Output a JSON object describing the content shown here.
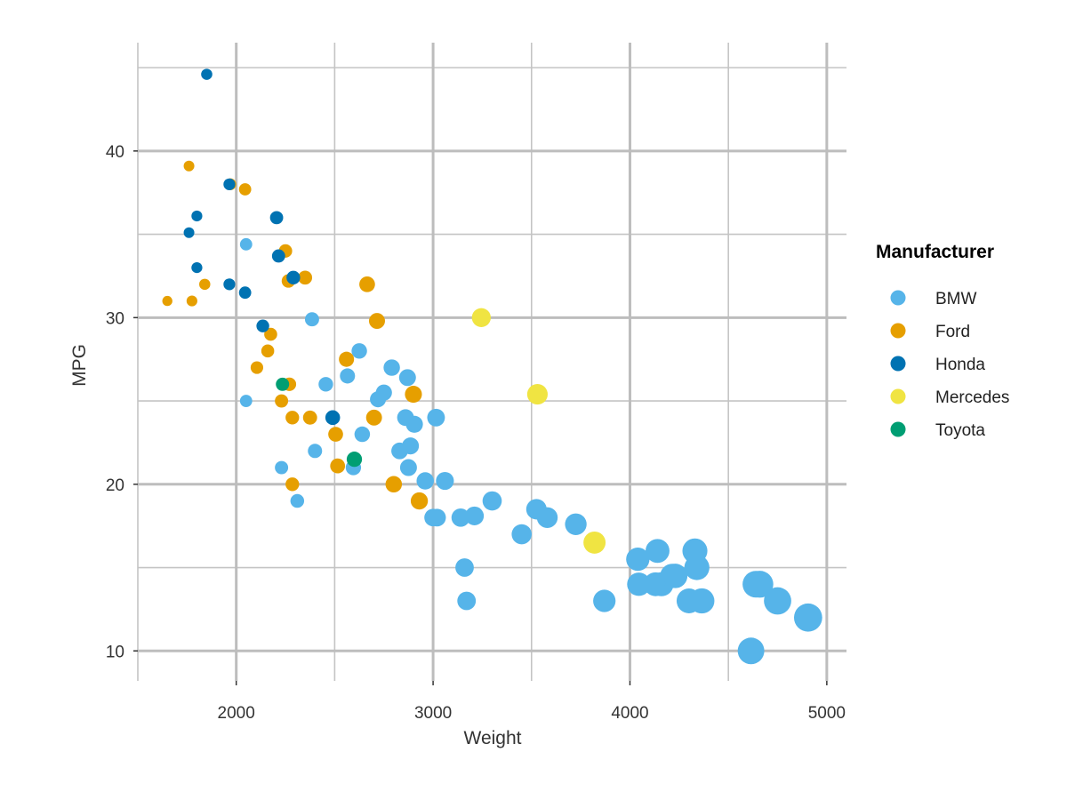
{
  "chart_data": {
    "type": "scatter",
    "title": "",
    "xlabel": "Weight",
    "ylabel": "MPG",
    "xlim": [
      1500,
      5100
    ],
    "ylim": [
      8.2,
      46.5
    ],
    "x_ticks": [
      2000,
      3000,
      4000,
      5000
    ],
    "y_ticks": [
      10,
      20,
      30,
      40
    ],
    "x_tick_labels": [
      "2000",
      "3000",
      "4000",
      "5000"
    ],
    "y_tick_labels": [
      "10",
      "20",
      "30",
      "40"
    ],
    "grid": true,
    "legend_position": "right",
    "legend_title": "Manufacturer",
    "point_size_encodes": "Weight",
    "series": [
      {
        "name": "BMW",
        "color": "#56B4E9",
        "points": [
          [
            2050,
            34.4
          ],
          [
            2050,
            25
          ],
          [
            2230,
            21
          ],
          [
            2310,
            19
          ],
          [
            2385,
            29.9
          ],
          [
            2400,
            22
          ],
          [
            2455,
            26
          ],
          [
            2565,
            26.5
          ],
          [
            2595,
            21
          ],
          [
            2625,
            28
          ],
          [
            2640,
            23
          ],
          [
            2720,
            25.1
          ],
          [
            2750,
            25.5
          ],
          [
            2790,
            27
          ],
          [
            2830,
            22
          ],
          [
            2860,
            24
          ],
          [
            2870,
            26.4
          ],
          [
            2875,
            21
          ],
          [
            2885,
            22.3
          ],
          [
            2905,
            23.6
          ],
          [
            2960,
            20.2
          ],
          [
            3000,
            18
          ],
          [
            3015,
            24
          ],
          [
            3020,
            18
          ],
          [
            3060,
            20.2
          ],
          [
            3140,
            18
          ],
          [
            3160,
            15
          ],
          [
            3170,
            13
          ],
          [
            3210,
            18.1
          ],
          [
            3300,
            19
          ],
          [
            3450,
            17
          ],
          [
            3525,
            18.5
          ],
          [
            3580,
            18
          ],
          [
            3725,
            17.6
          ],
          [
            3870,
            13
          ],
          [
            4040,
            15.5
          ],
          [
            4045,
            14
          ],
          [
            4130,
            14
          ],
          [
            4140,
            16
          ],
          [
            4160,
            14
          ],
          [
            4215,
            14.5
          ],
          [
            4230,
            14.5
          ],
          [
            4300,
            13
          ],
          [
            4330,
            16
          ],
          [
            4340,
            15
          ],
          [
            4365,
            13
          ],
          [
            4615,
            10
          ],
          [
            4640,
            14
          ],
          [
            4660,
            14
          ],
          [
            4750,
            13
          ],
          [
            4905,
            12
          ]
        ]
      },
      {
        "name": "Ford",
        "color": "#E69F00",
        "points": [
          [
            1650,
            31
          ],
          [
            1760,
            39.1
          ],
          [
            1775,
            31
          ],
          [
            1840,
            32
          ],
          [
            1970,
            38
          ],
          [
            2045,
            37.7
          ],
          [
            2105,
            27
          ],
          [
            2160,
            28
          ],
          [
            2175,
            29
          ],
          [
            2230,
            25
          ],
          [
            2250,
            34
          ],
          [
            2265,
            32.2
          ],
          [
            2270,
            26
          ],
          [
            2285,
            24
          ],
          [
            2285,
            20
          ],
          [
            2350,
            32.4
          ],
          [
            2375,
            24
          ],
          [
            2505,
            23
          ],
          [
            2515,
            21.1
          ],
          [
            2560,
            27.5
          ],
          [
            2665,
            32
          ],
          [
            2700,
            24
          ],
          [
            2715,
            29.8
          ],
          [
            2800,
            20
          ],
          [
            2900,
            25.4
          ],
          [
            2930,
            19
          ]
        ]
      },
      {
        "name": "Honda",
        "color": "#0072B2",
        "points": [
          [
            1850,
            44.6
          ],
          [
            1760,
            35.1
          ],
          [
            1800,
            36.1
          ],
          [
            1800,
            33
          ],
          [
            1965,
            38
          ],
          [
            1965,
            32
          ],
          [
            2045,
            31.5
          ],
          [
            2135,
            29.5
          ],
          [
            2205,
            36
          ],
          [
            2215,
            33.7
          ],
          [
            2290,
            32.4
          ],
          [
            2490,
            24
          ]
        ]
      },
      {
        "name": "Mercedes",
        "color": "#F0E442",
        "points": [
          [
            3245,
            30
          ],
          [
            3530,
            25.4
          ],
          [
            3820,
            16.5
          ]
        ]
      },
      {
        "name": "Toyota",
        "color": "#009E73",
        "points": [
          [
            2235,
            26
          ],
          [
            2600,
            21.5
          ]
        ]
      }
    ]
  }
}
